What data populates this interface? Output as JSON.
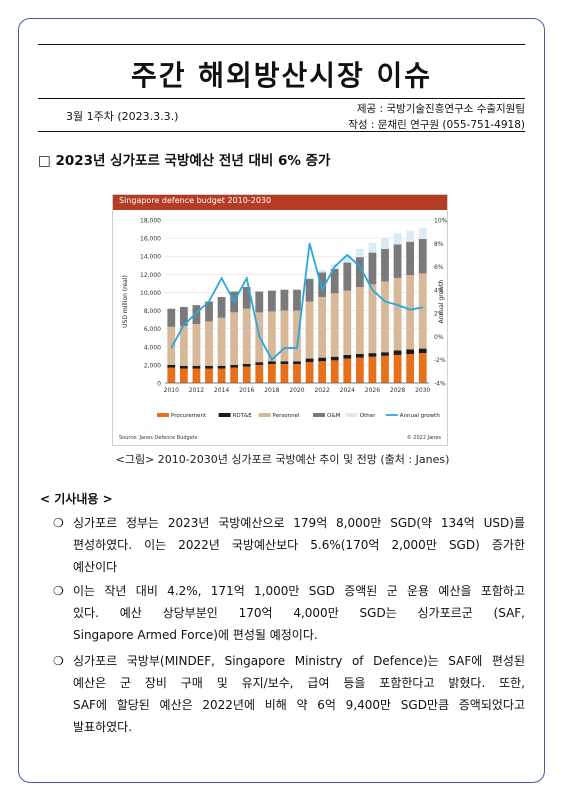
{
  "header": {
    "title": "주간 해외방산시장 이슈",
    "week": "3월 1주차 (2023.3.3.)",
    "provider": "제공 : 국방기술진흥연구소 수출지원팀",
    "author": "작성 : 문채린 연구원 (055-751-4918)"
  },
  "headline": "□ 2023년 싱가포르 국방예산 전년 대비 6% 증가",
  "figure": {
    "caption": "<그림> 2010-2030년 싱가포르 국방예산 추이 및 전망 (출처 : Janes)"
  },
  "chart_data": {
    "type": "bar",
    "title": "Singapore defence budget 2010-2030",
    "ylabel": "USD million (real)",
    "y2label": "Annual growth",
    "ylim": [
      0,
      18000
    ],
    "y2lim": [
      -4,
      10
    ],
    "y_ticks": [
      "0",
      "2,000",
      "4,000",
      "6,000",
      "8,000",
      "10,000",
      "12,000",
      "14,000",
      "16,000",
      "18,000"
    ],
    "y2_ticks": [
      "-4%",
      "-2%",
      "0%",
      "2%",
      "4%",
      "6%",
      "8%",
      "10%"
    ],
    "x_ticks": [
      "2010",
      "2012",
      "2014",
      "2016",
      "2018",
      "2020",
      "2022",
      "2024",
      "2026",
      "2028",
      "2030"
    ],
    "categories": [
      2010,
      2011,
      2012,
      2013,
      2014,
      2015,
      2016,
      2017,
      2018,
      2019,
      2020,
      2021,
      2022,
      2023,
      2024,
      2025,
      2026,
      2027,
      2028,
      2029,
      2030
    ],
    "stacked": true,
    "series": [
      {
        "name": "Procurement",
        "color": "#e8701a",
        "values": [
          1700,
          1600,
          1600,
          1600,
          1600,
          1700,
          1800,
          2000,
          2100,
          2100,
          2100,
          2300,
          2400,
          2500,
          2700,
          2800,
          2900,
          3000,
          3100,
          3200,
          3300
        ]
      },
      {
        "name": "RDT&E",
        "color": "#1c1c1c",
        "values": [
          300,
          300,
          300,
          300,
          300,
          300,
          300,
          300,
          300,
          300,
          300,
          400,
          400,
          400,
          400,
          400,
          400,
          400,
          500,
          500,
          500
        ]
      },
      {
        "name": "Personnel",
        "color": "#d7b898",
        "values": [
          4200,
          4400,
          4600,
          4900,
          5300,
          5800,
          6100,
          5500,
          5500,
          5600,
          5600,
          6300,
          6700,
          7000,
          7100,
          7400,
          7600,
          7800,
          8000,
          8200,
          8300
        ]
      },
      {
        "name": "O&M",
        "color": "#7a7a7a",
        "values": [
          2000,
          2100,
          2100,
          2200,
          2300,
          2300,
          2400,
          2300,
          2300,
          2300,
          2300,
          2500,
          2700,
          2700,
          3100,
          3300,
          3500,
          3600,
          3700,
          3700,
          3800
        ]
      },
      {
        "name": "Other",
        "color": "#d9ecf6",
        "values": [
          0,
          0,
          0,
          0,
          0,
          0,
          0,
          0,
          0,
          0,
          0,
          200,
          300,
          500,
          700,
          900,
          1100,
          1200,
          1200,
          1200,
          1200
        ]
      },
      {
        "name": "Annual growth",
        "color": "#2aa7de",
        "axis": "right",
        "values": [
          -1,
          1,
          2,
          3,
          5,
          3,
          5,
          0,
          -2,
          -1,
          -1,
          8,
          4,
          6,
          7,
          6,
          4,
          3,
          2.7,
          2.3,
          2.5
        ]
      }
    ],
    "legend": "bottom",
    "grid": true,
    "source": "Source: Janes Defence Budgets",
    "copyright": "© 2022 Janes"
  },
  "section": {
    "label": "< 기사내용 >"
  },
  "paragraphs": [
    {
      "bullet": "❍",
      "lines": [
        "싱가포르 정부는 2023년 국방예산으로 179억 8,000만 SGD(약 134억 USD)를",
        "편성하였다. 이는 2022년 국방예산보다 5.6%(170억 2,000만 SGD) 증가한",
        "예산이다"
      ]
    },
    {
      "bullet": "❍",
      "lines": [
        "이는 작년 대비 4.2%, 171억 1,000만 SGD 증액된 군 운용 예산을 포함하고",
        "있다. 예산 상당부분인 170억 4,000만 SGD는 싱가포르군 (SAF,",
        "Singapore Armed Force)에 편성될 예정이다."
      ]
    },
    {
      "bullet": "❍",
      "lines": [
        "싱가포르 국방부(MINDEF, Singapore Ministry of Defence)는 SAF에 편성된",
        "예산은 군 장비 구매 및 유지/보수, 급여 등을 포함한다고 밝혔다. 또한,",
        "SAF에 할당된 예산은 2022년에 비해 약 6억 9,400만 SGD만큼 증액되었다고",
        "발표하였다."
      ]
    }
  ]
}
